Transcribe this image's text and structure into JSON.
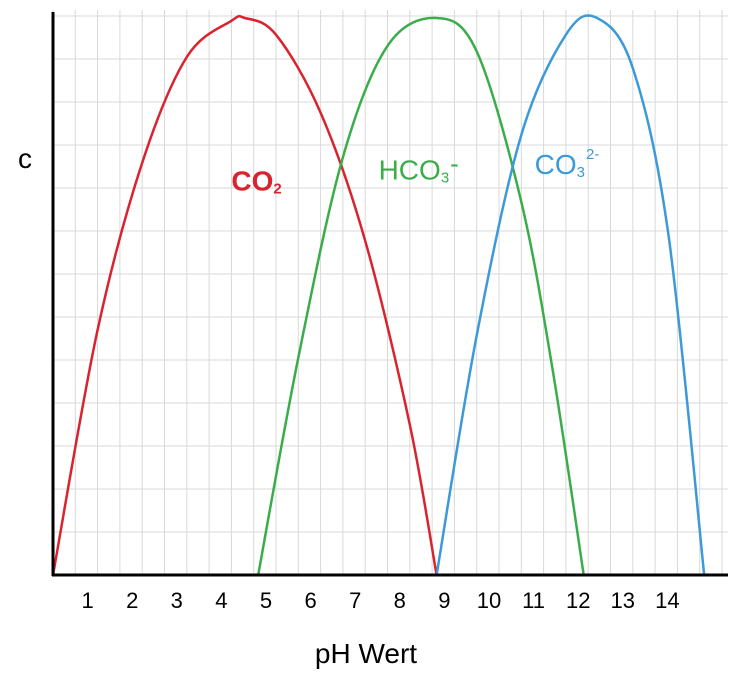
{
  "chart_data": {
    "type": "line",
    "title": "",
    "xlabel": "pH Wert",
    "ylabel": "c",
    "xlim": [
      0,
      15.2
    ],
    "ylim": [
      0,
      1
    ],
    "x_ticks": [
      "1",
      "2",
      "3",
      "4",
      "5",
      "6",
      "7",
      "8",
      "9",
      "10",
      "11",
      "12",
      "13",
      "14"
    ],
    "grid": true,
    "series": [
      {
        "name": "CO2",
        "label_main": "CO",
        "label_sub": "2",
        "label_sup": "",
        "label_weight": "bold",
        "color": "#d9232e",
        "x": [
          0.0,
          1.0,
          2.0,
          3.0,
          4.0,
          4.3,
          5.0,
          6.0,
          7.0,
          8.0,
          8.6
        ],
        "y": [
          0.0,
          0.44,
          0.74,
          0.93,
          0.995,
          1.0,
          0.97,
          0.83,
          0.6,
          0.27,
          0.0
        ]
      },
      {
        "name": "HCO3-",
        "label_main": "HCO",
        "label_sub": "3",
        "label_sup": "-",
        "label_weight": "normal",
        "color": "#3aad4a",
        "x": [
          4.6,
          5.5,
          6.5,
          7.5,
          8.6,
          9.5,
          10.5,
          11.2,
          11.9
        ],
        "y": [
          0.0,
          0.39,
          0.75,
          0.95,
          1.0,
          0.94,
          0.67,
          0.37,
          0.0
        ]
      },
      {
        "name": "CO3 2-",
        "label_main": "CO",
        "label_sub": "3",
        "label_sup": "2-",
        "label_weight": "normal",
        "color": "#3b9ad8",
        "x": [
          8.6,
          9.5,
          10.5,
          11.5,
          12.2,
          13.0,
          13.8,
          14.6
        ],
        "y": [
          0.0,
          0.43,
          0.79,
          0.97,
          1.0,
          0.91,
          0.61,
          0.0
        ]
      }
    ],
    "label_anchors": [
      {
        "x": 4.0,
        "y": 0.69
      },
      {
        "x": 7.3,
        "y": 0.71
      },
      {
        "x": 10.8,
        "y": 0.72
      }
    ]
  }
}
